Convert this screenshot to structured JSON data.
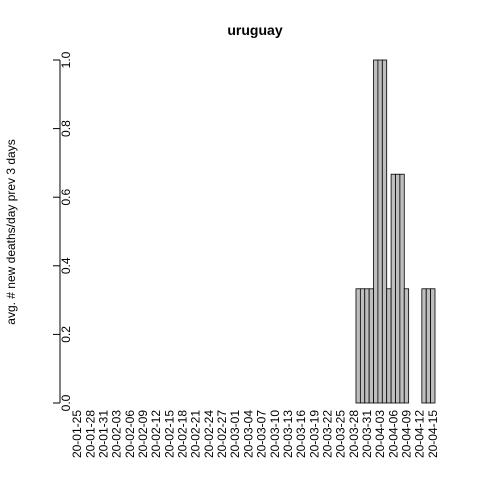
{
  "chart_data": {
    "type": "bar",
    "title": "uruguay",
    "y_label": "avg. # new deaths/day prev  3  days",
    "categories": [
      "20-01-25",
      null,
      null,
      "20-01-28",
      null,
      null,
      "20-01-31",
      null,
      null,
      "20-02-03",
      null,
      null,
      "20-02-06",
      null,
      null,
      "20-02-09",
      null,
      null,
      "20-02-12",
      null,
      null,
      "20-02-15",
      null,
      null,
      "20-02-18",
      null,
      null,
      "20-02-21",
      null,
      null,
      "20-02-24",
      null,
      null,
      "20-02-27",
      null,
      null,
      "20-03-01",
      null,
      null,
      "20-03-04",
      null,
      null,
      "20-03-07",
      null,
      null,
      "20-03-10",
      null,
      null,
      "20-03-13",
      null,
      null,
      "20-03-16",
      null,
      null,
      "20-03-19",
      null,
      null,
      "20-03-22",
      null,
      null,
      "20-03-25",
      null,
      null,
      "20-03-28",
      null,
      null,
      "20-03-31",
      null,
      null,
      "20-04-03",
      null,
      null,
      "20-04-06",
      null,
      null,
      "20-04-09",
      null,
      null,
      "20-04-12",
      null,
      null,
      "20-04-15"
    ],
    "values": [
      0,
      0,
      0,
      0,
      0,
      0,
      0,
      0,
      0,
      0,
      0,
      0,
      0,
      0,
      0,
      0,
      0,
      0,
      0,
      0,
      0,
      0,
      0,
      0,
      0,
      0,
      0,
      0,
      0,
      0,
      0,
      0,
      0,
      0,
      0,
      0,
      0,
      0,
      0,
      0,
      0,
      0,
      0,
      0,
      0,
      0,
      0,
      0,
      0,
      0,
      0,
      0,
      0,
      0,
      0,
      0,
      0,
      0,
      0,
      0,
      0,
      0,
      0,
      0,
      0.333,
      0.333,
      0.333,
      0.333,
      1,
      1,
      1,
      0.333,
      0.667,
      0.667,
      0.667,
      0.333,
      0,
      0,
      0,
      0.333,
      0.333,
      0.333
    ],
    "color": "#bebebe",
    "ylim": [
      0,
      1
    ],
    "yticks": [
      {
        "value": 0,
        "label": "0.0"
      },
      0.2,
      0.4,
      0.6,
      0.8,
      {
        "value": 1,
        "label": "1.0"
      }
    ]
  }
}
